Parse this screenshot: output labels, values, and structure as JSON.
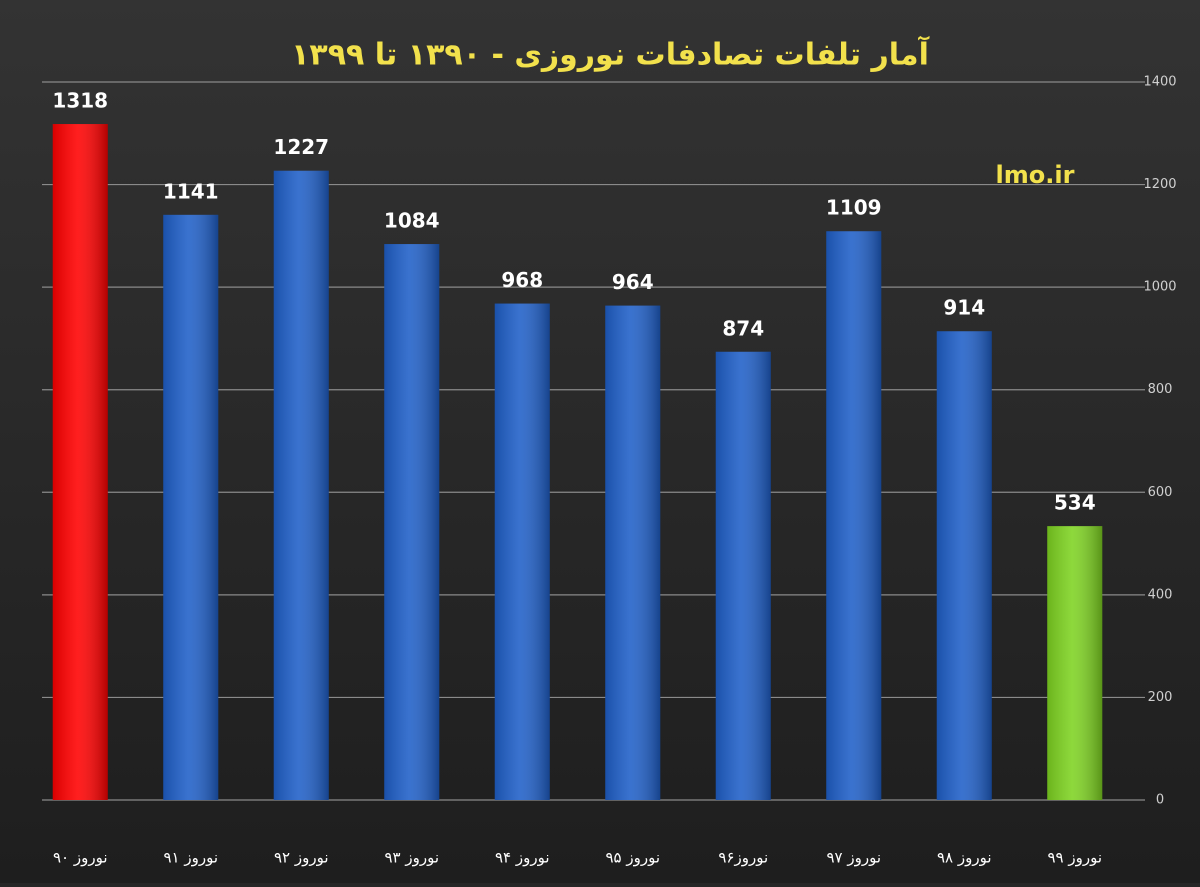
{
  "chart_data": {
    "type": "bar",
    "title": "آمار تلفات تصادفات نوروزی - ۱۳۹۰ تا ۱۳۹۹",
    "annotation": "lmo.ir",
    "categories": [
      "نوروز ۹۰",
      "نوروز ۹۱",
      "نوروز ۹۲",
      "نوروز ۹۳",
      "نوروز ۹۴",
      "نوروز ۹۵",
      "نوروز۹۶",
      "نوروز ۹۷",
      "نوروز ۹۸",
      "نوروز ۹۹"
    ],
    "values": [
      1318,
      1141,
      1227,
      1084,
      968,
      964,
      874,
      1109,
      914,
      534
    ],
    "colors": [
      "#ff0000",
      "#1f5fc8",
      "#1f5fc8",
      "#1f5fc8",
      "#1f5fc8",
      "#1f5fc8",
      "#1f5fc8",
      "#1f5fc8",
      "#1f5fc8",
      "#7ed321"
    ],
    "ylim": [
      0,
      1400
    ],
    "yticks": [
      0,
      200,
      400,
      600,
      800,
      1000,
      1200,
      1400
    ],
    "grid": true
  }
}
